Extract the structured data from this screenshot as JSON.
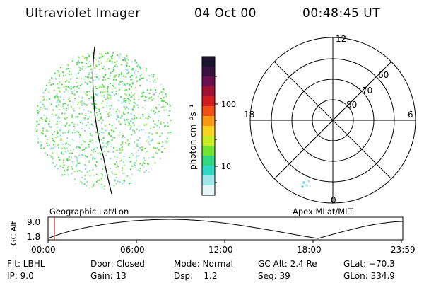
{
  "header": {
    "title": "Ultraviolet Imager",
    "date": "04 Oct 00",
    "time": "00:48:45 UT"
  },
  "left_panel": {
    "caption": "Geographic Lat/Lon"
  },
  "colorbar": {
    "unit_label": "photon cm⁻²s⁻¹",
    "ticks": [
      "100",
      "10"
    ],
    "colors": [
      "#1a1430",
      "#3a1040",
      "#6a1050",
      "#a01030",
      "#d01c1c",
      "#f05014",
      "#f89814",
      "#f8d21c",
      "#c8ec20",
      "#70e430",
      "#30d880",
      "#30d8c8",
      "#9ce8e8",
      "#e6f6f6"
    ]
  },
  "polar_plot": {
    "caption": "Apex MLat/MLT",
    "mlt_labels": {
      "top": "12",
      "left": "18",
      "right": "6",
      "bottom": "0"
    },
    "lat_labels": [
      "60",
      "70",
      "80"
    ]
  },
  "altitude_strip": {
    "ylabel": "GC Alt",
    "yticks": [
      "9.0",
      "1.8"
    ],
    "xticks": [
      "00:00",
      "06:00",
      "12:00",
      "18:00",
      "23:59"
    ]
  },
  "info": {
    "flt": "Flt: LBHL",
    "ip": "IP:  9.0",
    "door": "Door: Closed",
    "gain": "Gain: 13",
    "mode": "Mode: Normal",
    "dsp": "Dsp:    1.2",
    "gcalt": "GC Alt: 2.4 Re",
    "seq": "Seq: 39",
    "glat": "GLat: −70.3",
    "glon": "GLon: 334.9"
  }
}
